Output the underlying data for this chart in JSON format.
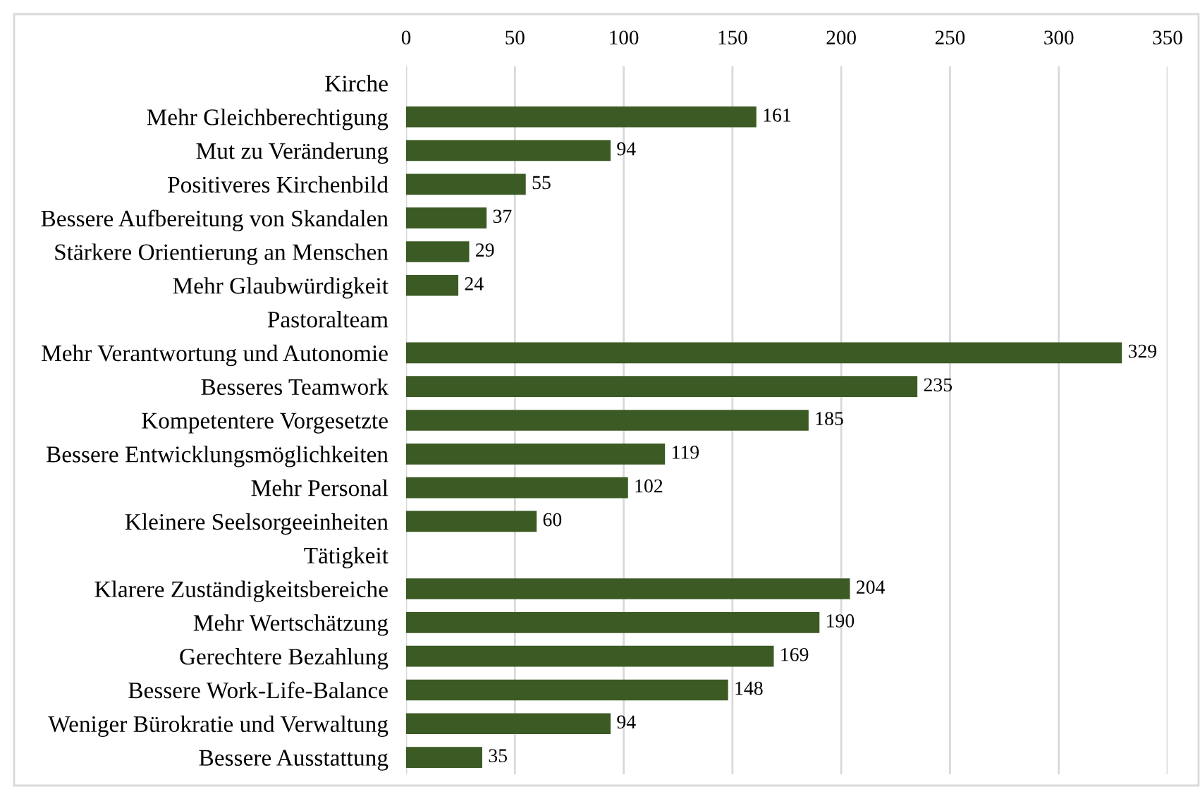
{
  "chart_data": {
    "type": "bar",
    "orientation": "horizontal",
    "categories": [
      "Kirche",
      "Mehr Gleichberechtigung",
      "Mut zu Veränderung",
      "Positiveres Kirchenbild",
      "Bessere Aufbereitung von Skandalen",
      "Stärkere Orientierung an Menschen",
      "Mehr Glaubwürdigkeit",
      "Pastoralteam",
      "Mehr Verantwortung und Autonomie",
      "Besseres Teamwork",
      "Kompetentere Vorgesetzte",
      "Bessere Entwicklungsmöglichkeiten",
      "Mehr Personal",
      "Kleinere Seelsorgeeinheiten",
      "Tätigkeit",
      "Klarere Zuständigkeitsbereiche",
      "Mehr Wertschätzung",
      "Gerechtere Bezahlung",
      "Bessere Work-Life-Balance",
      "Weniger Bürokratie und Verwaltung",
      "Bessere Ausstattung"
    ],
    "values": [
      null,
      161,
      94,
      55,
      37,
      29,
      24,
      null,
      329,
      235,
      185,
      119,
      102,
      60,
      null,
      204,
      190,
      169,
      148,
      94,
      35
    ],
    "color": "#3b5a24",
    "xlim": [
      0,
      350
    ],
    "xticks": [
      0,
      50,
      100,
      150,
      200,
      250,
      300,
      350
    ],
    "grid": "x",
    "data_labels": true
  }
}
